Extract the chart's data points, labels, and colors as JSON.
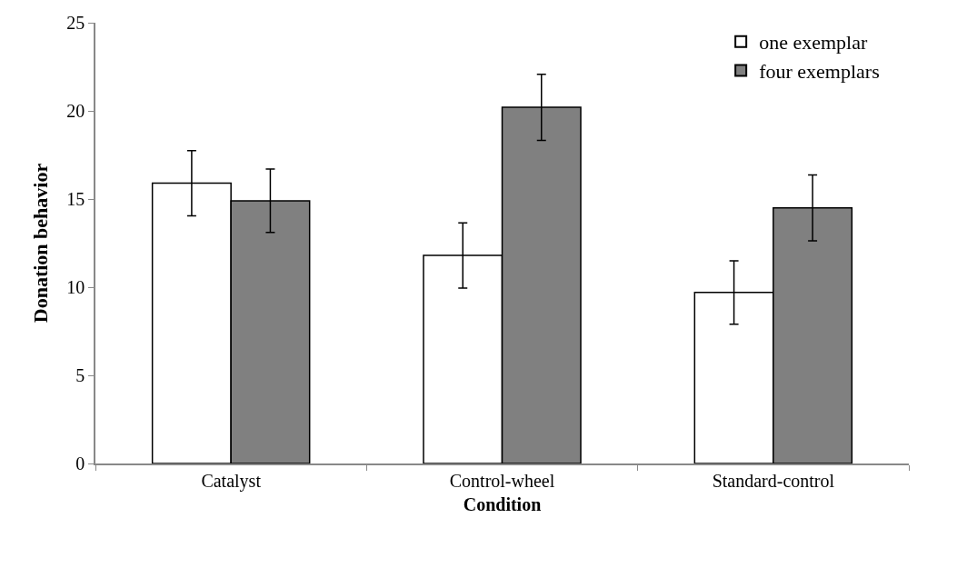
{
  "chart_data": {
    "type": "bar",
    "xlabel": "Condition",
    "ylabel": "Donation behavior",
    "categories": [
      "Catalyst",
      "Control-wheel",
      "Standard-control"
    ],
    "series": [
      {
        "name": "one exemplar",
        "color": "#ffffff",
        "values": [
          15.9,
          11.8,
          9.7
        ],
        "errors": [
          1.85,
          1.85,
          1.8
        ]
      },
      {
        "name": "four exemplars",
        "color": "#808080",
        "values": [
          14.9,
          20.2,
          14.5
        ],
        "errors": [
          1.8,
          1.87,
          1.87
        ]
      }
    ],
    "ylim": [
      0,
      25
    ],
    "yticks": [
      0,
      5,
      10,
      15,
      20,
      25
    ],
    "legend": "top right"
  }
}
